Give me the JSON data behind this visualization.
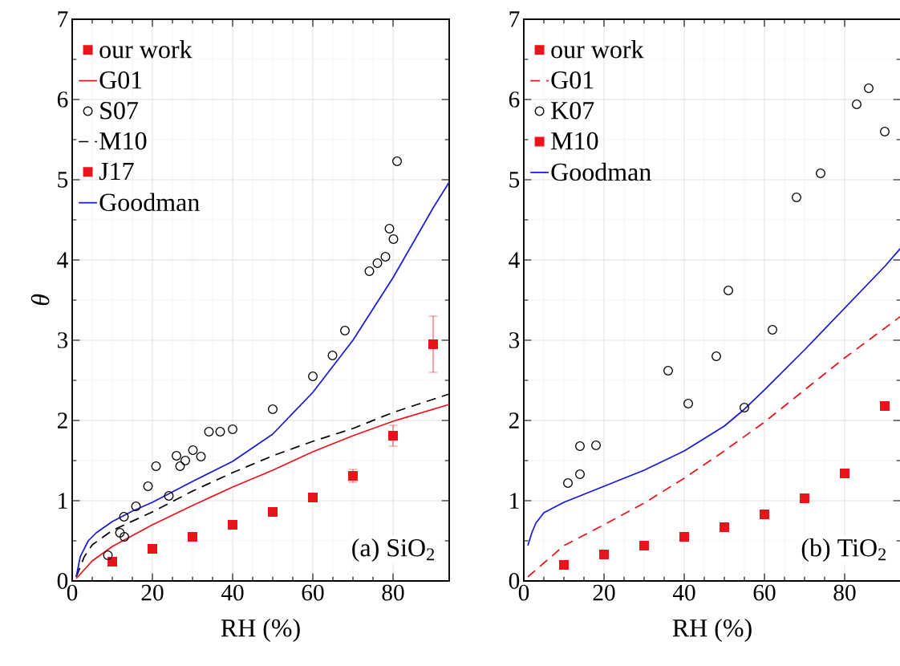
{
  "chart_data": [
    {
      "type": "scatter",
      "xlabel": "RH (%)",
      "ylabel": "θ",
      "xlim": [
        0,
        94
      ],
      "ylim": [
        0,
        7
      ],
      "xticks": [
        0,
        20,
        40,
        60,
        80
      ],
      "yticks": [
        0,
        1,
        2,
        3,
        4,
        5,
        6,
        7
      ],
      "grid": true,
      "legend": "top left",
      "annotations": [
        "(a) SiO$_{2}$"
      ],
      "series": [
        {
          "name": "our work",
          "marker": "square",
          "color": "#e8141c",
          "x": [
            10,
            20,
            30,
            40,
            50,
            60,
            70,
            80,
            90
          ],
          "values": [
            0.24,
            0.4,
            0.55,
            0.7,
            0.86,
            1.04,
            1.31,
            1.81,
            2.95
          ],
          "errors": [
            null,
            null,
            null,
            null,
            null,
            null,
            0.08,
            0.13,
            0.35
          ]
        },
        {
          "name": "G01",
          "type": "line",
          "marker": "none",
          "line_style": "solid",
          "color": "#e8141c",
          "x": [
            1,
            5,
            10,
            20,
            30,
            40,
            50,
            60,
            70,
            80,
            94
          ],
          "values": [
            0.03,
            0.25,
            0.43,
            0.7,
            0.94,
            1.17,
            1.38,
            1.61,
            1.81,
            1.99,
            2.2
          ]
        },
        {
          "name": "S07",
          "marker": "circle",
          "color": "#000000",
          "x": [
            8.9,
            11.9,
            13,
            12.9,
            15.9,
            18.9,
            20.9,
            24.1,
            26,
            26.9,
            28.2,
            30.1,
            32.1,
            34.1,
            36.9,
            40,
            50,
            60,
            64.9,
            68,
            74.1,
            76.1,
            78.1,
            79.1,
            80.1,
            81
          ],
          "values": [
            0.32,
            0.6,
            0.55,
            0.8,
            0.93,
            1.18,
            1.43,
            1.06,
            1.56,
            1.43,
            1.5,
            1.63,
            1.55,
            1.86,
            1.86,
            1.89,
            2.14,
            2.55,
            2.81,
            3.12,
            3.86,
            3.96,
            4.04,
            4.39,
            4.26,
            5.23
          ]
        },
        {
          "name": "M10",
          "type": "line",
          "marker": "none",
          "line_style": "dashed",
          "color": "#000000",
          "x": [
            1,
            3,
            5,
            10,
            20,
            30,
            40,
            50,
            60,
            70,
            80,
            94
          ],
          "values": [
            0.05,
            0.3,
            0.45,
            0.63,
            0.86,
            1.12,
            1.35,
            1.56,
            1.74,
            1.9,
            2.1,
            2.33
          ]
        },
        {
          "name": "J17",
          "marker": "square",
          "color": "#e8141c"
        },
        {
          "name": "Goodman",
          "type": "line",
          "marker": "none",
          "line_style": "solid",
          "color": "#1a1ad6",
          "x": [
            1,
            2,
            4,
            6,
            10,
            15,
            20,
            30,
            40,
            50,
            60,
            70,
            80,
            90,
            94
          ],
          "values": [
            0.05,
            0.3,
            0.5,
            0.6,
            0.74,
            0.87,
            0.98,
            1.24,
            1.49,
            1.83,
            2.35,
            3.0,
            3.78,
            4.65,
            4.97
          ]
        }
      ]
    },
    {
      "type": "scatter",
      "xlabel": "RH (%)",
      "xlim": [
        0,
        94
      ],
      "ylim": [
        0,
        7
      ],
      "xticks": [
        0,
        20,
        40,
        60,
        80
      ],
      "yticks": [
        0,
        1,
        2,
        3,
        4,
        5,
        6,
        7
      ],
      "grid": true,
      "legend": "top left",
      "annotations": [
        "(b) TiO$_{2}$"
      ],
      "series": [
        {
          "name": "our work",
          "marker": "square",
          "color": "#e8141c",
          "x": [
            10,
            20,
            30,
            40,
            50,
            60,
            70,
            80,
            90
          ],
          "values": [
            0.2,
            0.33,
            0.44,
            0.55,
            0.67,
            0.83,
            1.03,
            1.34,
            2.18
          ]
        },
        {
          "name": "G01",
          "type": "line",
          "marker": "none",
          "line_style": "dashed",
          "color": "#e8141c",
          "x": [
            1,
            10,
            20,
            30,
            40,
            50,
            60,
            70,
            80,
            90,
            94
          ],
          "values": [
            0.05,
            0.44,
            0.7,
            0.97,
            1.28,
            1.62,
            1.98,
            2.38,
            2.78,
            3.15,
            3.3
          ]
        },
        {
          "name": "K07",
          "marker": "circle",
          "color": "#000000",
          "x": [
            11,
            14,
            14,
            18,
            36,
            41,
            48,
            51,
            55,
            62,
            68,
            74,
            83,
            86,
            90
          ],
          "values": [
            1.22,
            1.33,
            1.68,
            1.69,
            2.62,
            2.21,
            2.8,
            3.62,
            2.16,
            3.13,
            4.78,
            5.08,
            5.94,
            6.14,
            5.6
          ]
        },
        {
          "name": "M10",
          "marker": "square",
          "color": "#e8141c"
        },
        {
          "name": "Goodman",
          "type": "line",
          "marker": "none",
          "line_style": "solid",
          "color": "#1a1ad6",
          "x": [
            1,
            2,
            3,
            5,
            10,
            20,
            30,
            40,
            50,
            55,
            60,
            70,
            80,
            90,
            94
          ],
          "values": [
            0.44,
            0.6,
            0.72,
            0.85,
            0.98,
            1.18,
            1.38,
            1.62,
            1.93,
            2.14,
            2.38,
            2.88,
            3.4,
            3.92,
            4.15
          ]
        }
      ]
    }
  ]
}
